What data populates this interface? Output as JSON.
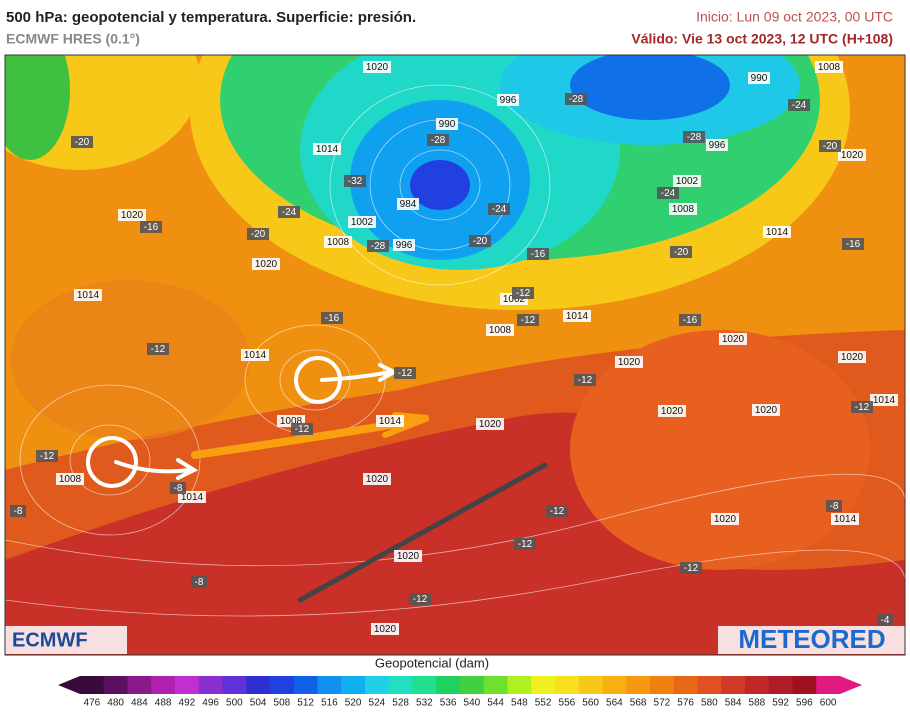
{
  "header": {
    "title": "500 hPa: geopotencial y temperatura. Superficie: presión.",
    "subtitle": "ECMWF HRES (0.1°)",
    "init": "Inicio: Lun 09 oct 2023, 00 UTC",
    "valid": "Válido: Vie 13 oct 2023, 12 UTC (H+108)"
  },
  "map": {
    "isobar_labels": [
      "1020",
      "990",
      "1008",
      "996",
      "990",
      "1014",
      "996",
      "1002",
      "984",
      "1008",
      "1002",
      "1008",
      "996",
      "1020",
      "1020",
      "1014",
      "1020",
      "1014",
      "1002",
      "1014",
      "1008",
      "1014",
      "1020",
      "1020",
      "1020",
      "1008",
      "1014",
      "1020",
      "1020",
      "1020",
      "1014",
      "1008",
      "1014",
      "1020",
      "1020",
      "1014",
      "1020",
      "1020"
    ],
    "temperature_labels": [
      "-20",
      "-16",
      "-20",
      "-24",
      "-32",
      "-28",
      "-28",
      "-20",
      "-24",
      "-28",
      "-24",
      "-28",
      "-20",
      "-24",
      "-16",
      "-20",
      "-16",
      "-12",
      "-12",
      "-16",
      "-16",
      "-12",
      "-12",
      "-12",
      "-12",
      "-12",
      "-12",
      "-8",
      "-8",
      "-12",
      "-12",
      "-8",
      "-12",
      "-8",
      "-12",
      "-4"
    ],
    "logos": [
      "ECMWF",
      "METEORED"
    ]
  },
  "colorbar": {
    "label": "Geopotencial (dam)",
    "ticks": [
      476,
      480,
      484,
      488,
      492,
      496,
      500,
      504,
      508,
      512,
      516,
      520,
      524,
      528,
      532,
      536,
      540,
      544,
      548,
      552,
      556,
      560,
      564,
      568,
      572,
      576,
      580,
      584,
      588,
      592,
      596,
      600
    ],
    "colors": [
      "#3a0a3a",
      "#5b1060",
      "#8a1a8a",
      "#b020b0",
      "#c030d0",
      "#8a30d0",
      "#6030d8",
      "#3030d0",
      "#2040e0",
      "#1060e8",
      "#1090f0",
      "#10b0f0",
      "#20d0e8",
      "#20e0c0",
      "#20e090",
      "#20d060",
      "#40d040",
      "#70e030",
      "#b0f020",
      "#f0f020",
      "#f8e020",
      "#f8c818",
      "#f8b010",
      "#f89810",
      "#f08010",
      "#e86818",
      "#e05020",
      "#d03828",
      "#c02828",
      "#b01c28",
      "#a01020",
      "#e01a80"
    ]
  }
}
